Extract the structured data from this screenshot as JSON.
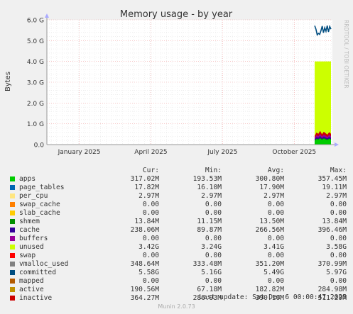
{
  "chart_data": {
    "type": "area",
    "title": "Memory usage - by year",
    "ylabel": "Bytes",
    "ylim": [
      0,
      6.0
    ],
    "y_ticks": [
      "0.0",
      "1.0 G",
      "2.0 G",
      "3.0 G",
      "4.0 G",
      "5.0 G",
      "6.0 G"
    ],
    "y_tick_values": [
      0,
      1,
      2,
      3,
      4,
      5,
      6
    ],
    "x_ticks": [
      "January 2025",
      "April 2025",
      "July 2025",
      "October 2025"
    ],
    "x_tick_positions": [
      0.188,
      0.439,
      0.69,
      0.941
    ],
    "watermark": "RRDTOOL / TOBI OETIKER",
    "data_start": 0.938,
    "unused_top": 4.0,
    "stack_top": [
      0.42,
      0.58,
      0.52,
      0.66,
      0.5,
      0.62,
      0.55,
      0.48,
      0.6,
      0.52
    ],
    "committed": [
      5.72,
      5.55,
      5.28,
      5.35,
      5.3,
      5.48,
      5.7,
      5.38,
      5.62,
      5.45,
      5.72,
      5.42,
      5.68,
      5.55
    ],
    "legend_header": {
      "cur": "Cur:",
      "min": "Min:",
      "avg": "Avg:",
      "max": "Max:"
    },
    "series": [
      {
        "name": "apps",
        "color": "#00cc00",
        "cur": "317.02M",
        "min": "193.53M",
        "avg": "300.80M",
        "max": "357.45M"
      },
      {
        "name": "page_tables",
        "color": "#0066b3",
        "cur": "17.82M",
        "min": "16.10M",
        "avg": "17.90M",
        "max": "19.11M"
      },
      {
        "name": "per_cpu",
        "color": "#ffe680",
        "cur": "2.97M",
        "min": "2.97M",
        "avg": "2.97M",
        "max": "2.97M"
      },
      {
        "name": "swap_cache",
        "color": "#ff8000",
        "cur": "0.00",
        "min": "0.00",
        "avg": "0.00",
        "max": "0.00"
      },
      {
        "name": "slab_cache",
        "color": "#ffcc00",
        "cur": "0.00",
        "min": "0.00",
        "avg": "0.00",
        "max": "0.00"
      },
      {
        "name": "shmem",
        "color": "#008f00",
        "cur": "13.84M",
        "min": "11.15M",
        "avg": "13.50M",
        "max": "13.84M"
      },
      {
        "name": "cache",
        "color": "#330099",
        "cur": "238.06M",
        "min": "89.87M",
        "avg": "266.56M",
        "max": "396.46M"
      },
      {
        "name": "buffers",
        "color": "#990099",
        "cur": "0.00",
        "min": "0.00",
        "avg": "0.00",
        "max": "0.00"
      },
      {
        "name": "unused",
        "color": "#ccff00",
        "cur": "3.42G",
        "min": "3.24G",
        "avg": "3.41G",
        "max": "3.58G"
      },
      {
        "name": "swap",
        "color": "#ff0000",
        "cur": "0.00",
        "min": "0.00",
        "avg": "0.00",
        "max": "0.00"
      },
      {
        "name": "vmalloc_used",
        "color": "#808080",
        "cur": "348.64M",
        "min": "333.48M",
        "avg": "351.20M",
        "max": "370.99M"
      },
      {
        "name": "committed",
        "color": "#004d80",
        "cur": "5.58G",
        "min": "5.16G",
        "avg": "5.49G",
        "max": "5.97G"
      },
      {
        "name": "mapped",
        "color": "#b35a00",
        "cur": "0.00",
        "min": "0.00",
        "avg": "0.00",
        "max": "0.00"
      },
      {
        "name": "active",
        "color": "#c09000",
        "cur": "190.56M",
        "min": "67.18M",
        "avg": "182.82M",
        "max": "284.98M"
      },
      {
        "name": "inactive",
        "color": "#cc0000",
        "cur": "364.27M",
        "min": "286.93M",
        "avg": "390.10M",
        "max": "511.29M"
      }
    ]
  },
  "footer": {
    "last_update": "Last update: Sat Dec  6 00:00:47 2025",
    "munin": "Munin 2.0.73"
  }
}
